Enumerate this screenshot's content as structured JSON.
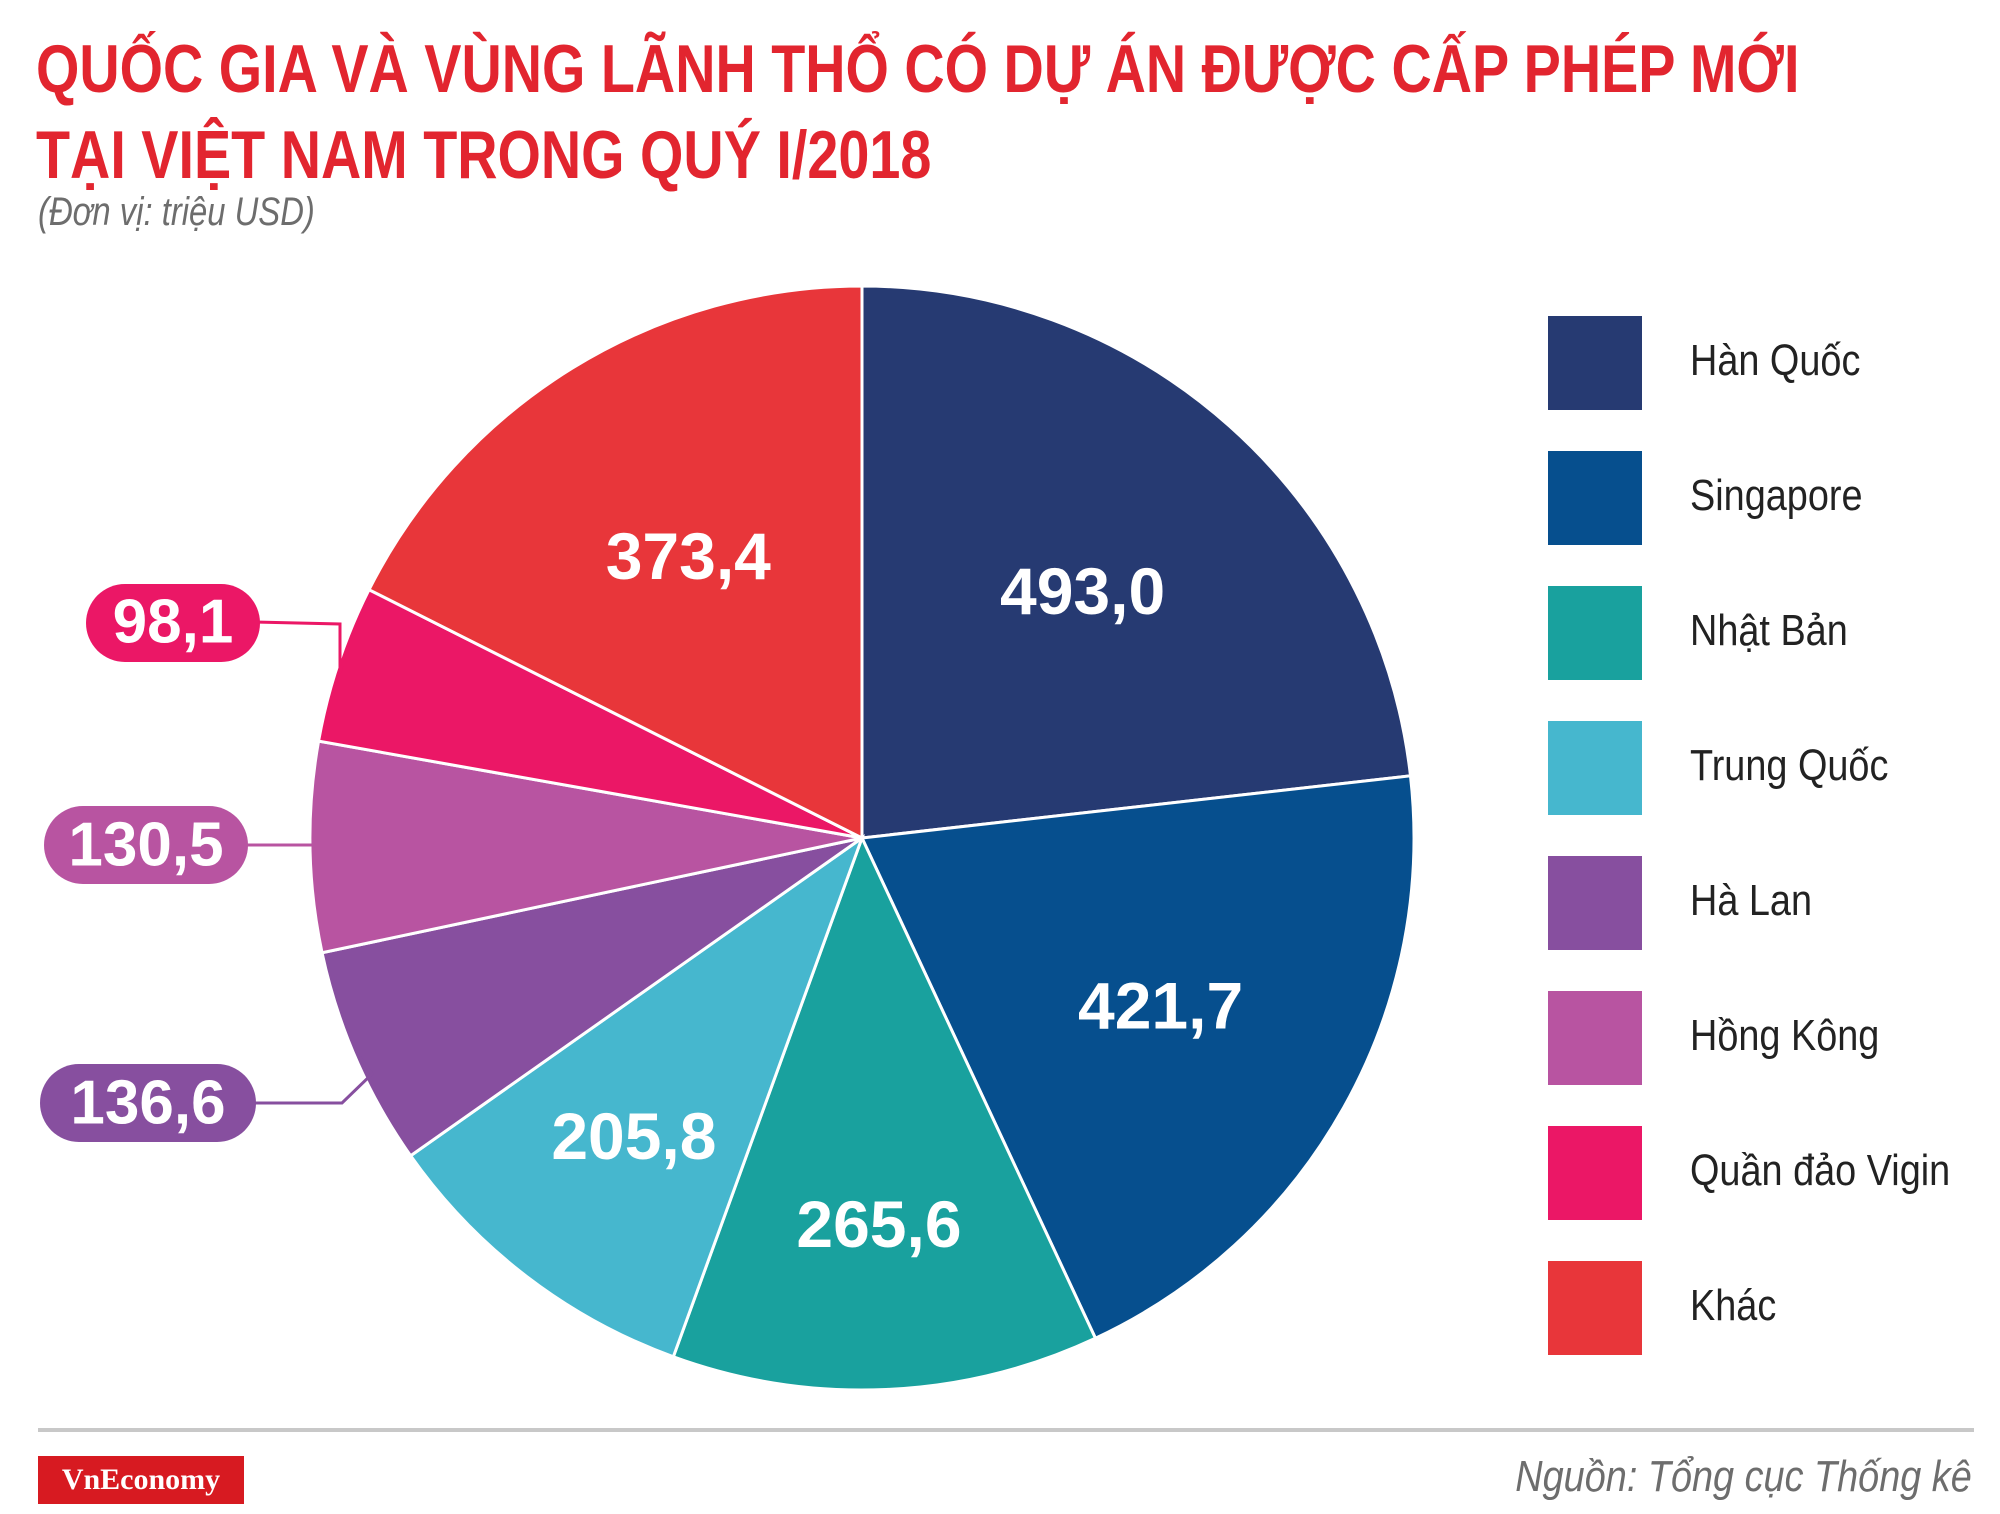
{
  "header": {
    "title_line1": "QUỐC GIA VÀ VÙNG LÃNH THỔ CÓ DỰ ÁN ĐƯỢC CẤP PHÉP MỚI",
    "title_line2": "TẠI VIỆT NAM TRONG QUÝ I/2018",
    "unit": "(Đơn vị: triệu USD)"
  },
  "chart_data": {
    "type": "pie",
    "title": "QUỐC GIA VÀ VÙNG LÃNH THỔ CÓ DỰ ÁN ĐƯỢC CẤP PHÉP MỚI TẠI VIỆT NAM TRONG QUÝ I/2018",
    "unit": "triệu USD",
    "legend_position": "right",
    "slices": [
      {
        "label": "Hàn Quốc",
        "value": 493.0,
        "display": "493,0",
        "color": "#263a72",
        "callout": false
      },
      {
        "label": "Singapore",
        "value": 421.7,
        "display": "421,7",
        "color": "#064f8e",
        "callout": false
      },
      {
        "label": "Nhật Bản",
        "value": 265.6,
        "display": "265,6",
        "color": "#19a19e",
        "callout": false
      },
      {
        "label": "Trung Quốc",
        "value": 205.8,
        "display": "205,8",
        "color": "#46b7ce",
        "callout": false
      },
      {
        "label": "Hà Lan",
        "value": 136.6,
        "display": "136,6",
        "color": "#874f9f",
        "callout": true
      },
      {
        "label": "Hồng Kông",
        "value": 130.5,
        "display": "130,5",
        "color": "#b854a1",
        "callout": true
      },
      {
        "label": "Quần đảo Vigin",
        "value": 98.1,
        "display": "98,1",
        "color": "#eb1766",
        "callout": true
      },
      {
        "label": "Khác",
        "value": 373.4,
        "display": "373,4",
        "color": "#e8363a",
        "callout": false
      }
    ]
  },
  "footer": {
    "brand": "VnEconomy",
    "source": "Nguồn: Tổng cục Thống kê"
  }
}
